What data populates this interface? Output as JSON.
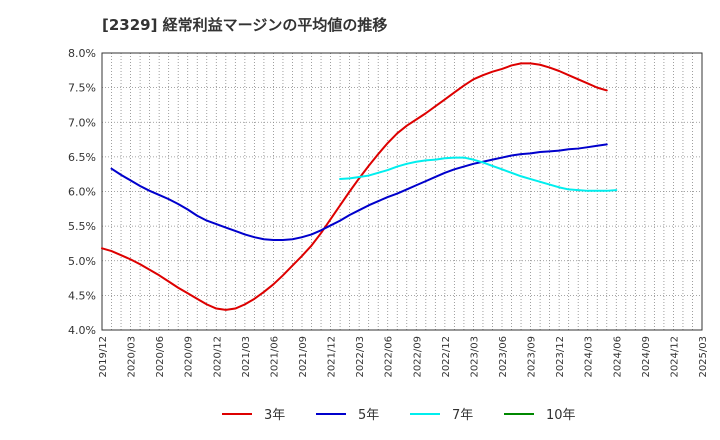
{
  "chart_data": {
    "type": "line",
    "title": "[2329]  経常利益マージンの平均値の推移",
    "xlabel": "",
    "ylabel": "",
    "ylim": [
      4.0,
      8.0
    ],
    "y_ticks": [
      "4.0%",
      "4.5%",
      "5.0%",
      "5.5%",
      "6.0%",
      "6.5%",
      "7.0%",
      "7.5%",
      "8.0%"
    ],
    "y_tick_values": [
      4.0,
      4.5,
      5.0,
      5.5,
      6.0,
      6.5,
      7.0,
      7.5,
      8.0
    ],
    "x_ticks": [
      "2019/12",
      "2020/03",
      "2020/06",
      "2020/09",
      "2020/12",
      "2021/03",
      "2021/06",
      "2021/09",
      "2021/12",
      "2022/03",
      "2022/06",
      "2022/09",
      "2022/12",
      "2023/03",
      "2023/06",
      "2023/09",
      "2023/12",
      "2024/03",
      "2024/06",
      "2024/09",
      "2024/12",
      "2025/03"
    ],
    "grid": true,
    "legend_position": "bottom",
    "series": [
      {
        "name": "3年",
        "color": "#dd0000",
        "start_index": 0,
        "values": [
          5.18,
          5.14,
          5.08,
          5.02,
          4.95,
          4.87,
          4.79,
          4.7,
          4.61,
          4.53,
          4.45,
          4.37,
          4.31,
          4.29,
          4.31,
          4.37,
          4.45,
          4.55,
          4.66,
          4.79,
          4.93,
          5.07,
          5.22,
          5.4,
          5.6,
          5.8,
          6.0,
          6.19,
          6.37,
          6.54,
          6.7,
          6.84,
          6.95,
          7.04,
          7.13,
          7.23,
          7.33,
          7.43,
          7.53,
          7.62,
          7.68,
          7.73,
          7.77,
          7.82,
          7.85,
          7.85,
          7.83,
          7.79,
          7.74,
          7.68,
          7.62,
          7.56,
          7.5,
          7.46
        ]
      },
      {
        "name": "5年",
        "color": "#0000cc",
        "start_index": 1,
        "values": [
          6.33,
          6.24,
          6.16,
          6.08,
          6.01,
          5.95,
          5.89,
          5.82,
          5.74,
          5.65,
          5.58,
          5.53,
          5.48,
          5.43,
          5.38,
          5.34,
          5.31,
          5.3,
          5.3,
          5.31,
          5.34,
          5.38,
          5.44,
          5.51,
          5.58,
          5.66,
          5.73,
          5.8,
          5.86,
          5.92,
          5.97,
          6.03,
          6.09,
          6.15,
          6.21,
          6.27,
          6.32,
          6.36,
          6.4,
          6.43,
          6.46,
          6.49,
          6.52,
          6.54,
          6.55,
          6.57,
          6.58,
          6.59,
          6.61,
          6.62,
          6.64,
          6.66,
          6.68
        ]
      },
      {
        "name": "7年",
        "color": "#00eeee",
        "start_index": 25,
        "values": [
          6.18,
          6.19,
          6.21,
          6.23,
          6.27,
          6.31,
          6.36,
          6.4,
          6.43,
          6.45,
          6.46,
          6.48,
          6.49,
          6.49,
          6.46,
          6.42,
          6.37,
          6.32,
          6.27,
          6.22,
          6.18,
          6.14,
          6.1,
          6.06,
          6.03,
          6.02,
          6.01,
          6.01,
          6.01,
          6.02
        ]
      },
      {
        "name": "10年",
        "color": "#008800",
        "start_index": 0,
        "values": []
      }
    ]
  }
}
